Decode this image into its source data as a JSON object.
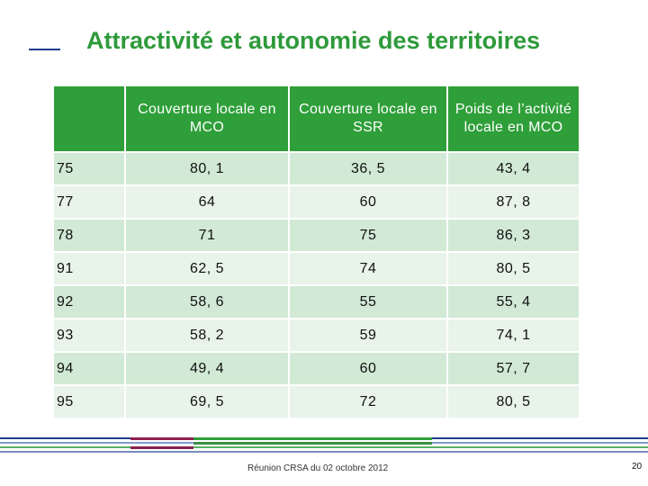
{
  "slide": {
    "title": "Attractivité et autonomie des territoires",
    "footer": "Réunion CRSA du 02 octobre 2012",
    "page_number": "20"
  },
  "table": {
    "headers": [
      "",
      "Couverture locale en MCO",
      "Couverture locale en SSR",
      "Poids de l’activité locale en MCO"
    ],
    "rows": [
      [
        "75",
        "80, 1",
        "36, 5",
        "43, 4"
      ],
      [
        "77",
        "64",
        "60",
        "87, 8"
      ],
      [
        "78",
        "71",
        "75",
        "86, 3"
      ],
      [
        "91",
        "62, 5",
        "74",
        "80, 5"
      ],
      [
        "92",
        "58, 6",
        "55",
        "55, 4"
      ],
      [
        "93",
        "58, 2",
        "59",
        "74, 1"
      ],
      [
        "94",
        "49, 4",
        "60",
        "57, 7"
      ],
      [
        "95",
        "69, 5",
        "72",
        "80, 5"
      ]
    ]
  },
  "colors": {
    "title": "#2e9a3a",
    "header_bg": "#2f9f3a",
    "row_odd": "#d1e9d5",
    "row_even": "#e8f3ea",
    "band_blue": "#1b3f8f",
    "band_red": "#8e1e4e",
    "band_green": "#2f9f3a"
  }
}
